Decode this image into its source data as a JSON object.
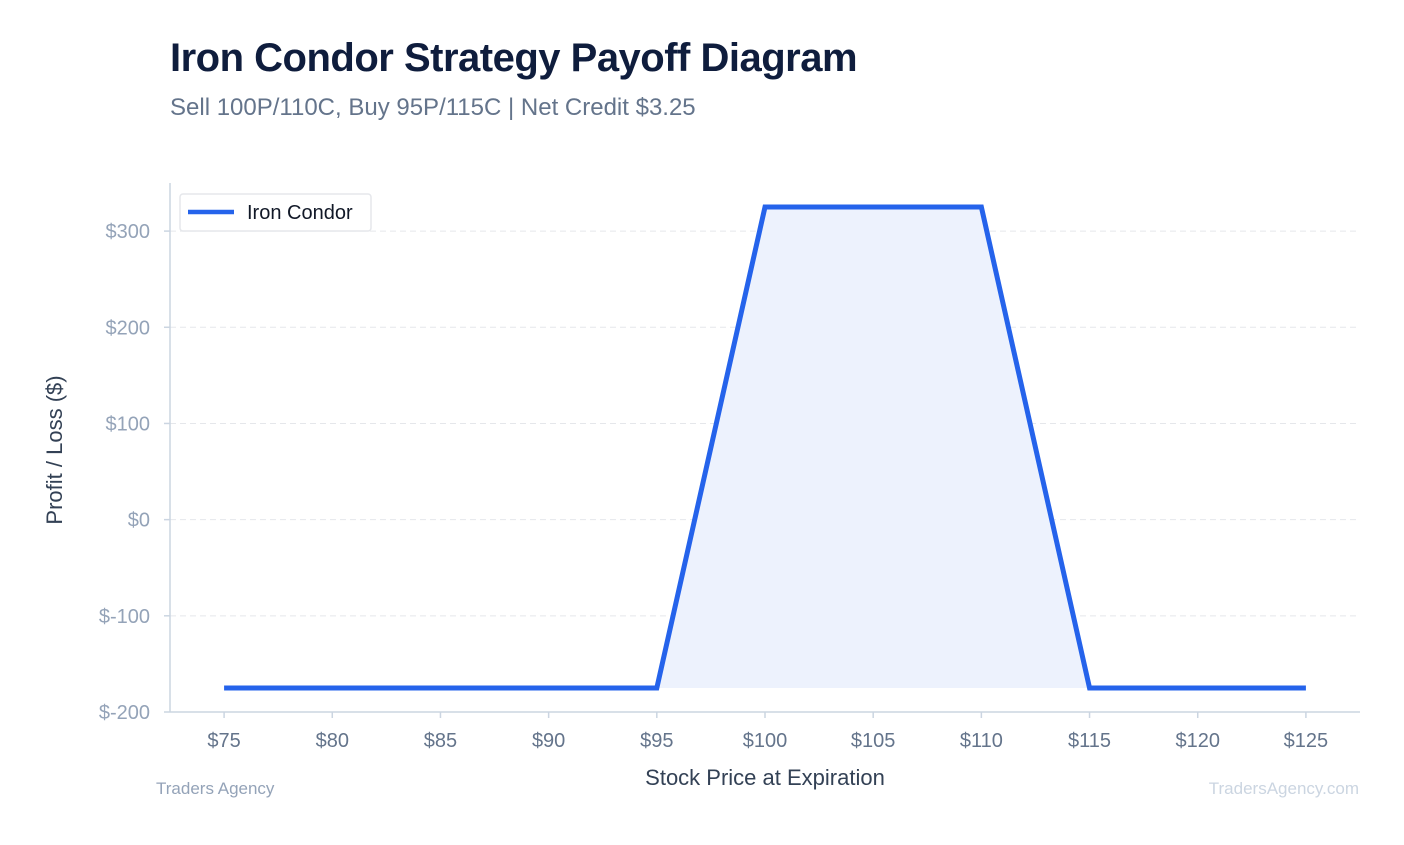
{
  "header": {
    "title": "Iron Condor Strategy Payoff Diagram",
    "subtitle": "Sell 100P/110C, Buy 95P/115C | Net Credit $3.25"
  },
  "footer": {
    "left": "Traders Agency",
    "right": "TradersAgency.com"
  },
  "colors": {
    "line": "#2563eb",
    "fill": "#edf2fd",
    "grid": "#e5e7eb",
    "axis": "#cbd5e1"
  },
  "chart_data": {
    "type": "line",
    "title": "Iron Condor Strategy Payoff Diagram",
    "subtitle": "Sell 100P/110C, Buy 95P/115C | Net Credit $3.25",
    "xlabel": "Stock Price at Expiration",
    "ylabel": "Profit / Loss ($)",
    "xlim": [
      72.5,
      127.5
    ],
    "ylim": [
      -200,
      350
    ],
    "x_ticks": [
      75,
      80,
      85,
      90,
      95,
      100,
      105,
      110,
      115,
      120,
      125
    ],
    "x_tick_labels": [
      "$75",
      "$80",
      "$85",
      "$90",
      "$95",
      "$100",
      "$105",
      "$110",
      "$115",
      "$120",
      "$125"
    ],
    "y_ticks": [
      -200,
      -100,
      0,
      100,
      200,
      300
    ],
    "y_tick_labels": [
      "$-200",
      "$-100",
      "$0",
      "$100",
      "$200",
      "$300"
    ],
    "grid": true,
    "legend_position": "top-left",
    "fill_under": true,
    "series": [
      {
        "name": "Iron Condor",
        "color": "#2563eb",
        "x": [
          75,
          95,
          100,
          110,
          115,
          125
        ],
        "y": [
          -175,
          -175,
          325,
          325,
          -175,
          -175
        ]
      }
    ]
  }
}
